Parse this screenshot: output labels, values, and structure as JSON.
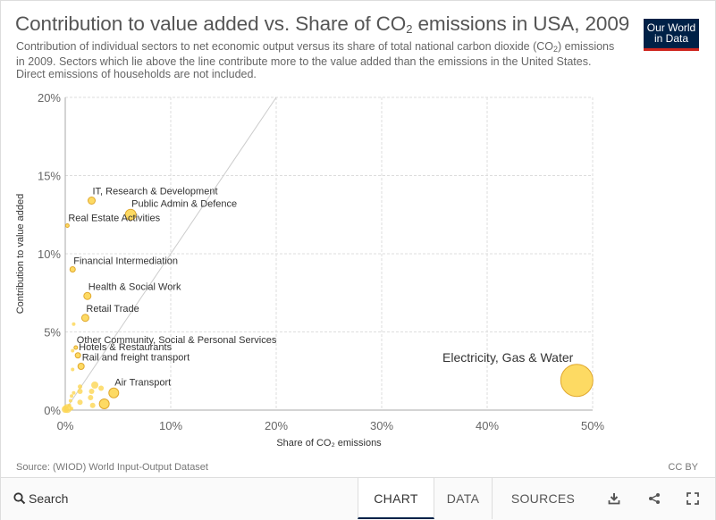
{
  "header": {
    "title": "Contribution to value added vs. Share of CO₂ emissions in USA, 2009",
    "subtitle": "Contribution of individual sectors to net economic output versus its share of total national carbon dioxide (CO₂) emissions in 2009. Sectors which lie above the line contribute more to the value added than the emissions in the United States. Direct emissions of households are not included.",
    "logo_line1": "Our World",
    "logo_line2": "in Data"
  },
  "chart_data": {
    "type": "scatter",
    "title": "Contribution to value added vs. Share of CO₂ emissions in USA, 2009",
    "xlabel": "Share of CO₂ emissions",
    "ylabel": "Contribution to value added",
    "xlim": [
      0,
      50
    ],
    "ylim": [
      0,
      20
    ],
    "xticks": [
      0,
      10,
      20,
      30,
      40,
      50
    ],
    "yticks": [
      0,
      5,
      10,
      15,
      20
    ],
    "xtick_labels": [
      "0%",
      "10%",
      "20%",
      "30%",
      "40%",
      "50%"
    ],
    "ytick_labels": [
      "0%",
      "5%",
      "10%",
      "15%",
      "20%"
    ],
    "grid": true,
    "reference_line": "y = x",
    "point_color": "#FDD652",
    "point_stroke": "#E0A82E",
    "labeled_points": [
      {
        "label": "Electricity, Gas & Water",
        "x": 48.5,
        "y": 1.9,
        "size": 18
      },
      {
        "label": "IT, Research & Development",
        "x": 2.5,
        "y": 13.4,
        "size": 4
      },
      {
        "label": "Public Admin & Defence",
        "x": 6.2,
        "y": 12.5,
        "size": 6
      },
      {
        "label": "Real Estate Activities",
        "x": 0.2,
        "y": 11.8,
        "size": 2
      },
      {
        "label": "Financial Intermediation",
        "x": 0.7,
        "y": 9.0,
        "size": 3
      },
      {
        "label": "Health & Social Work",
        "x": 2.1,
        "y": 7.3,
        "size": 4
      },
      {
        "label": "Retail Trade",
        "x": 1.9,
        "y": 5.9,
        "size": 4
      },
      {
        "label": "Other Community, Social & Personal Services",
        "x": 1.0,
        "y": 4.0,
        "size": 2
      },
      {
        "label": "Hotels & Restaurants",
        "x": 1.2,
        "y": 3.5,
        "size": 3
      },
      {
        "label": "Rail and freight transport",
        "x": 1.5,
        "y": 2.8,
        "size": 3.5
      },
      {
        "label": "Air Transport",
        "x": 4.6,
        "y": 1.1,
        "size": 5.5
      },
      {
        "label": "",
        "x": 3.7,
        "y": 0.4,
        "size": 5.5
      }
    ],
    "unlabeled_points": [
      {
        "x": 0.8,
        "y": 5.5,
        "size": 2
      },
      {
        "x": 0.7,
        "y": 3.8,
        "size": 2
      },
      {
        "x": 0.7,
        "y": 2.6,
        "size": 2
      },
      {
        "x": 1.4,
        "y": 1.5,
        "size": 2.5
      },
      {
        "x": 1.4,
        "y": 1.2,
        "size": 3
      },
      {
        "x": 2.5,
        "y": 1.2,
        "size": 3
      },
      {
        "x": 2.8,
        "y": 1.6,
        "size": 4
      },
      {
        "x": 3.4,
        "y": 1.4,
        "size": 3
      },
      {
        "x": 2.4,
        "y": 0.8,
        "size": 3
      },
      {
        "x": 1.4,
        "y": 0.5,
        "size": 3
      },
      {
        "x": 2.6,
        "y": 0.3,
        "size": 3
      },
      {
        "x": 0.8,
        "y": 1.1,
        "size": 2
      },
      {
        "x": 0.6,
        "y": 0.9,
        "size": 2
      },
      {
        "x": 0.5,
        "y": 0.6,
        "size": 2
      },
      {
        "x": 0.4,
        "y": 0.3,
        "size": 2
      },
      {
        "x": 0.6,
        "y": 0.1,
        "size": 2
      },
      {
        "x": 0.2,
        "y": 0.1,
        "size": 5
      },
      {
        "x": 0.0,
        "y": 0.05,
        "size": 4
      }
    ]
  },
  "source_text": "Source: (WIOD) World Input-Output Dataset",
  "license_text": "CC BY",
  "footer": {
    "search_label": "Search",
    "tabs": [
      "CHART",
      "DATA",
      "SOURCES"
    ],
    "active_tab": "CHART"
  }
}
